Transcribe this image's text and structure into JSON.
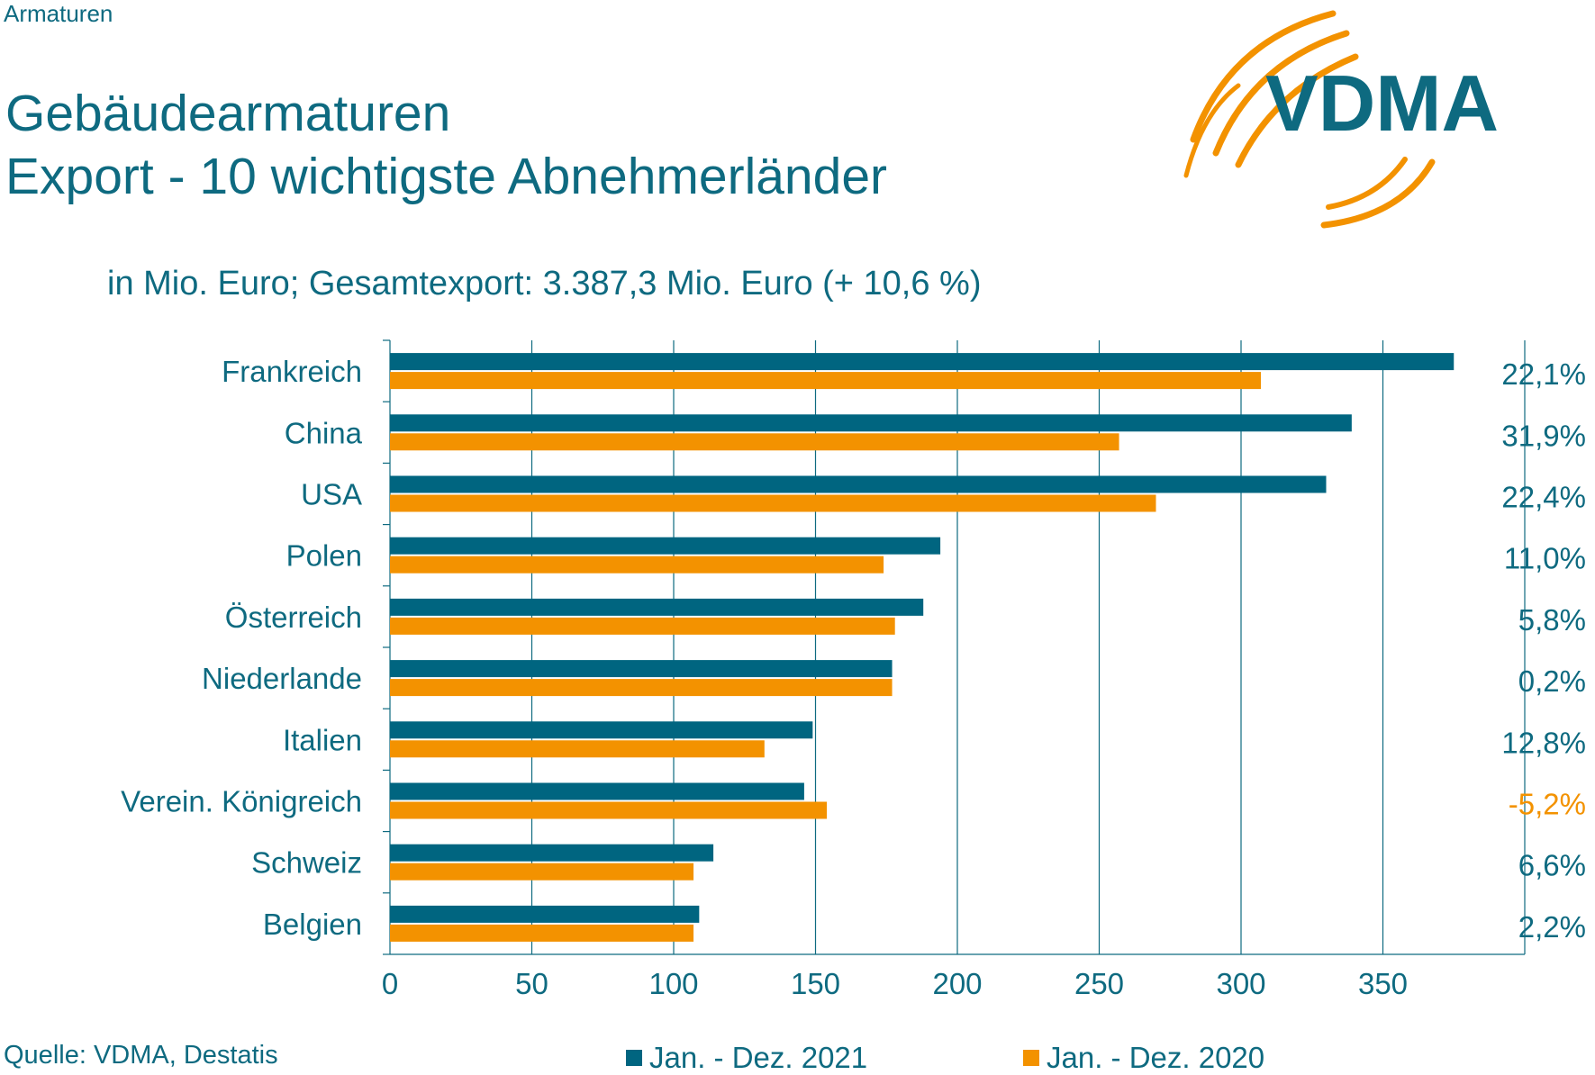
{
  "header": {
    "section": "Armaturen",
    "title_line1": "Gebäudearmaturen",
    "title_line2": "Export - 10 wichtigste Abnehmerländer",
    "subtitle": "in Mio. Euro; Gesamtexport: 3.387,3 Mio. Euro (+ 10,6 %)",
    "logo_text": "VDMA"
  },
  "footer": {
    "source": "Quelle: VDMA, Destatis"
  },
  "colors": {
    "series_2021": "#006580",
    "series_2020": "#f39200",
    "text": "#0e6a80",
    "negative": "#f39200",
    "grid": "#0e6a80"
  },
  "chart_data": {
    "type": "bar",
    "orientation": "horizontal",
    "categories": [
      "Frankreich",
      "China",
      "USA",
      "Polen",
      "Österreich",
      "Niederlande",
      "Italien",
      "Verein. Königreich",
      "Schweiz",
      "Belgien"
    ],
    "series": [
      {
        "name": "Jan. - Dez. 2021",
        "values": [
          375,
          339,
          330,
          194,
          188,
          177,
          149,
          146,
          114,
          109
        ]
      },
      {
        "name": "Jan. - Dez. 2020",
        "values": [
          307,
          257,
          270,
          174,
          178,
          177,
          132,
          154,
          107,
          107
        ]
      }
    ],
    "change_labels": [
      "22,1%",
      "31,9%",
      "22,4%",
      "11,0%",
      "5,8%",
      "0,2%",
      "12,8%",
      "-5,2%",
      "6,6%",
      "2,2%"
    ],
    "xlim": [
      0,
      400
    ],
    "xticks": [
      0,
      50,
      100,
      150,
      200,
      250,
      300,
      350
    ],
    "grid": true,
    "legend_position": "bottom"
  }
}
